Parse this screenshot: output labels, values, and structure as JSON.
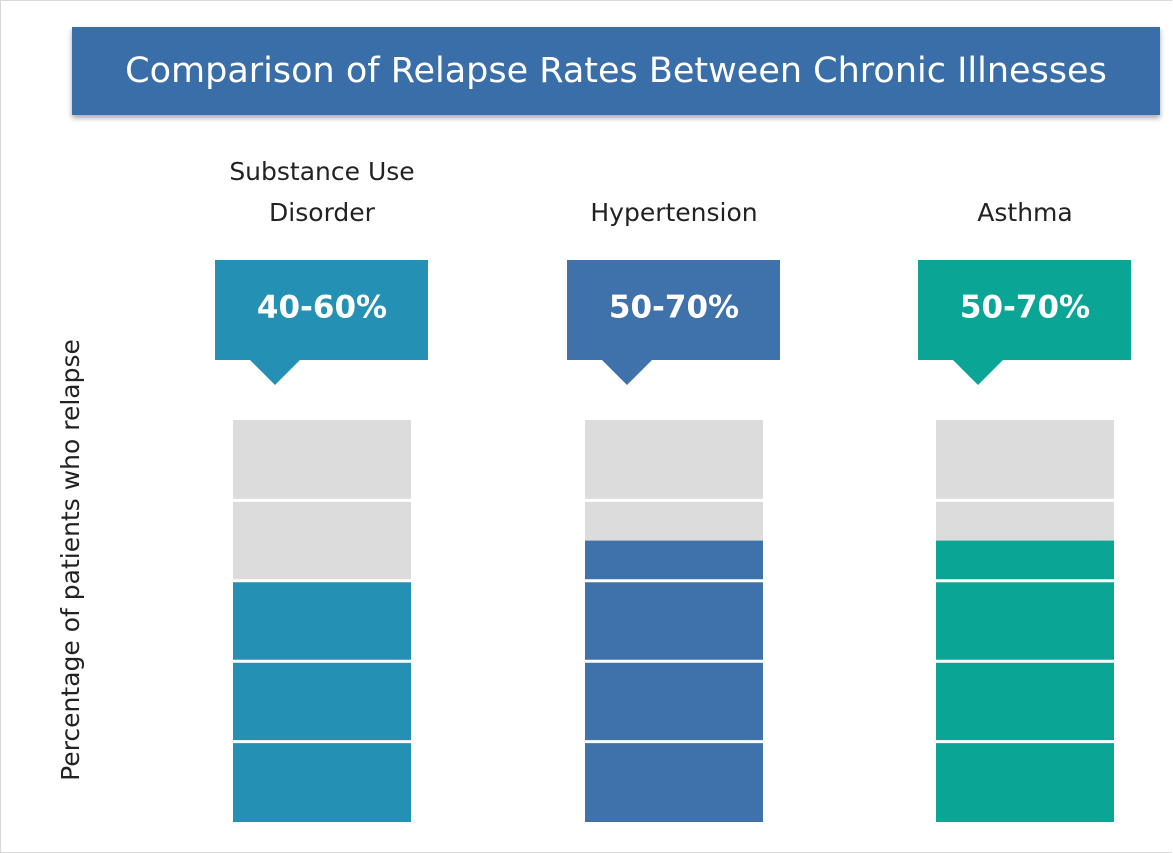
{
  "chart_data": {
    "type": "bar",
    "title": "Comparison of Relapse Rates Between Chronic Illnesses",
    "y_label": "Percentage of patients who relapse",
    "categories": [
      "Substance Use Disorder",
      "Hypertension",
      "Asthma"
    ],
    "values": [
      60,
      70,
      70
    ],
    "value_labels": [
      "40-60%",
      "50-70%",
      "50-70%"
    ],
    "colors": [
      "#2390b4",
      "#3f71aa",
      "#0aa595"
    ],
    "empty_color": "#dcdcdc",
    "ylim": [
      0,
      100
    ],
    "yticks": [
      0,
      20,
      40,
      60,
      80,
      100
    ],
    "grid": true
  }
}
